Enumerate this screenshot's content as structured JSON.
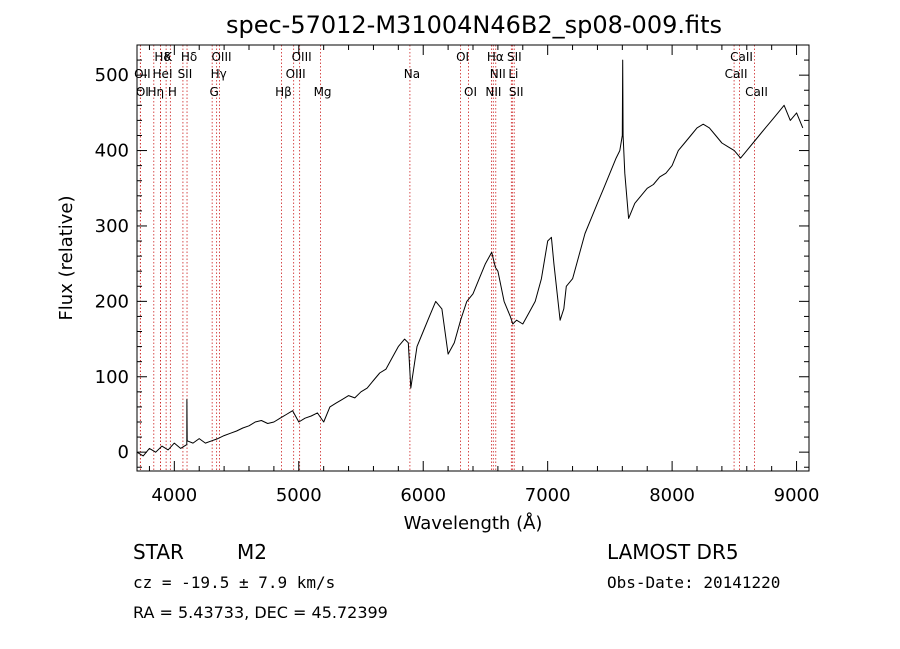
{
  "chart_data": {
    "type": "line",
    "title": "spec-57012-M31004N46B2_sp08-009.fits",
    "xlabel": "Wavelength (Å)",
    "ylabel": "Flux (relative)",
    "xlim": [
      3700,
      9100
    ],
    "ylim": [
      -25,
      540
    ],
    "xticks": [
      4000,
      5000,
      6000,
      7000,
      8000,
      9000
    ],
    "xtick_labels": [
      "4000",
      "5000",
      "6000",
      "7000",
      "8000",
      "9000"
    ],
    "yticks": [
      0,
      100,
      200,
      300,
      400,
      500
    ],
    "ytick_labels": [
      "0",
      "100",
      "200",
      "300",
      "400",
      "500"
    ],
    "grid": false,
    "line_color": "#000000",
    "marker_color": "#cc2222",
    "series": [
      {
        "x": [
          3700,
          3750,
          3800,
          3850,
          3900,
          3950,
          4000,
          4050,
          4100,
          4101,
          4103,
          4150,
          4200,
          4250,
          4300,
          4350,
          4400,
          4450,
          4500,
          4550,
          4600,
          4650,
          4700,
          4750,
          4800,
          4850,
          4900,
          4950,
          5000,
          5050,
          5100,
          5150,
          5200,
          5250,
          5300,
          5350,
          5400,
          5450,
          5500,
          5550,
          5600,
          5650,
          5700,
          5750,
          5800,
          5850,
          5880,
          5900,
          5950,
          6000,
          6050,
          6100,
          6150,
          6200,
          6250,
          6300,
          6350,
          6400,
          6450,
          6500,
          6550,
          6580,
          6600,
          6650,
          6700,
          6720,
          6750,
          6800,
          6850,
          6900,
          6950,
          7000,
          7030,
          7050,
          7100,
          7130,
          7150,
          7200,
          7250,
          7300,
          7350,
          7400,
          7450,
          7500,
          7550,
          7580,
          7600,
          7603,
          7606,
          7620,
          7650,
          7700,
          7750,
          7800,
          7850,
          7900,
          7950,
          8000,
          8050,
          8100,
          8150,
          8200,
          8250,
          8300,
          8350,
          8400,
          8450,
          8500,
          8550,
          8600,
          8650,
          8700,
          8750,
          8800,
          8850,
          8900,
          8950,
          9000,
          9050
        ],
        "y": [
          0,
          -5,
          5,
          0,
          8,
          3,
          12,
          5,
          10,
          70,
          15,
          12,
          18,
          12,
          15,
          18,
          22,
          25,
          28,
          32,
          35,
          40,
          42,
          38,
          40,
          45,
          50,
          55,
          40,
          45,
          48,
          52,
          40,
          60,
          65,
          70,
          75,
          72,
          80,
          85,
          95,
          105,
          110,
          125,
          140,
          150,
          145,
          85,
          140,
          160,
          180,
          200,
          190,
          130,
          145,
          175,
          200,
          210,
          230,
          250,
          265,
          245,
          240,
          200,
          180,
          170,
          175,
          170,
          185,
          200,
          230,
          280,
          285,
          250,
          175,
          190,
          220,
          230,
          260,
          290,
          310,
          330,
          350,
          370,
          390,
          400,
          420,
          520,
          420,
          370,
          310,
          330,
          340,
          350,
          355,
          365,
          370,
          380,
          400,
          410,
          420,
          430,
          435,
          430,
          420,
          410,
          405,
          400,
          390,
          400,
          410,
          420,
          430,
          440,
          450,
          460,
          440,
          450,
          430
        ]
      }
    ],
    "spectral_lines": [
      {
        "label": "Hδ",
        "x": 3889,
        "row": 0
      },
      {
        "label": "K",
        "x": 3934,
        "row": 0
      },
      {
        "label": "Hδ",
        "x": 4102,
        "row": 0
      },
      {
        "label": "OIII",
        "x": 4363,
        "row": 0
      },
      {
        "label": "OIII",
        "x": 5007,
        "row": 0
      },
      {
        "label": "OI",
        "x": 6300,
        "row": 0
      },
      {
        "label": "Hα",
        "x": 6563,
        "row": 0
      },
      {
        "label": "SII",
        "x": 6716,
        "row": 0
      },
      {
        "label": "CaII",
        "x": 8542,
        "row": 0
      },
      {
        "label": "OII",
        "x": 3727,
        "row": 1
      },
      {
        "label": "HeI",
        "x": 3889,
        "row": 1
      },
      {
        "label": "SII",
        "x": 4069,
        "row": 1
      },
      {
        "label": "Hγ",
        "x": 4340,
        "row": 1
      },
      {
        "label": "OIII",
        "x": 4959,
        "row": 1
      },
      {
        "label": "Na",
        "x": 5893,
        "row": 1
      },
      {
        "label": "NII",
        "x": 6583,
        "row": 1
      },
      {
        "label": "Li",
        "x": 6708,
        "row": 1
      },
      {
        "label": "CaII",
        "x": 8498,
        "row": 1
      },
      {
        "label": "OI",
        "x": 3727,
        "row": 2
      },
      {
        "label": "Hη",
        "x": 3835,
        "row": 2
      },
      {
        "label": "H",
        "x": 3968,
        "row": 2
      },
      {
        "label": "G",
        "x": 4304,
        "row": 2
      },
      {
        "label": "Hβ",
        "x": 4861,
        "row": 2
      },
      {
        "label": "Mg",
        "x": 5175,
        "row": 2
      },
      {
        "label": "OI",
        "x": 6364,
        "row": 2
      },
      {
        "label": "NII",
        "x": 6548,
        "row": 2
      },
      {
        "label": "SII",
        "x": 6731,
        "row": 2
      },
      {
        "label": "CaII",
        "x": 8662,
        "row": 2
      }
    ]
  },
  "info": {
    "class_label": "STAR",
    "subclass": "M2",
    "survey": "LAMOST DR5",
    "cz_text": "cz = -19.5 ± 7.9 km/s",
    "obs_date": "Obs-Date: 20141220",
    "radec": "RA =   5.43733, DEC =  45.72399"
  }
}
